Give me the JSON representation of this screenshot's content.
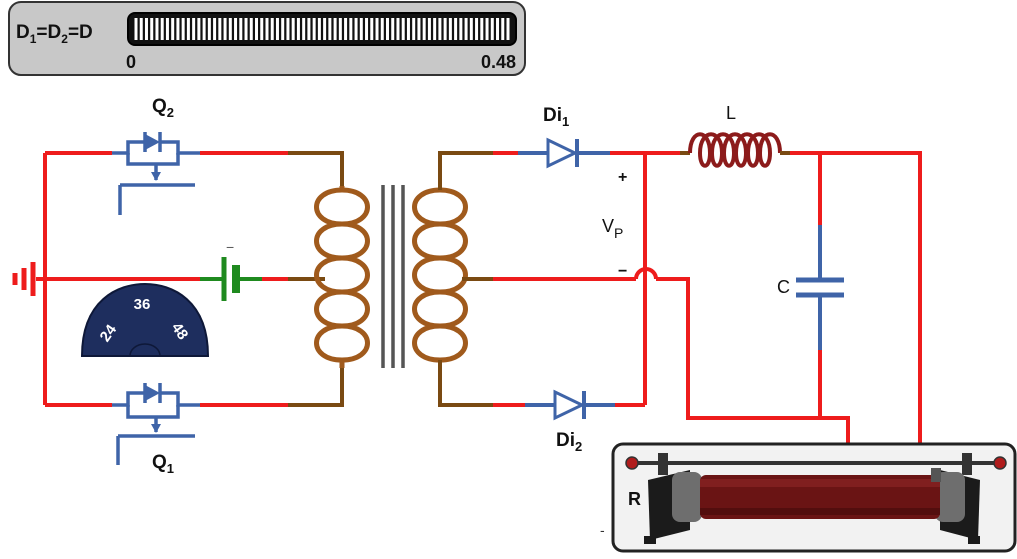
{
  "control": {
    "label_text": "D",
    "label_sub1": "1",
    "label_mid": "=D",
    "label_sub2": "2",
    "label_end": "=D",
    "min_label": "0",
    "max_label": "0.48",
    "tick_count": 72
  },
  "dial": {
    "values": [
      "24",
      "36",
      "48"
    ],
    "color": "#1e2e5e"
  },
  "labels": {
    "q2_main": "Q",
    "q2_sub": "2",
    "q1_main": "Q",
    "q1_sub": "1",
    "di1_main": "Di",
    "di1_sub": "1",
    "di2_main": "Di",
    "di2_sub": "2",
    "inductor": "L",
    "capacitor": "C",
    "vp_main": "V",
    "vp_sub": "P",
    "plus": "+",
    "minus": "−",
    "battery_mark": "−",
    "resistor": "R",
    "corner_mark": "-"
  },
  "colors": {
    "wire": "#ee1c1c",
    "mosfet": "#3f64a8",
    "battery": "#1f8a1f",
    "coil": "#a05a1c",
    "inductor": "#8c1b1b",
    "panel_bg": "#c8c8c8"
  }
}
